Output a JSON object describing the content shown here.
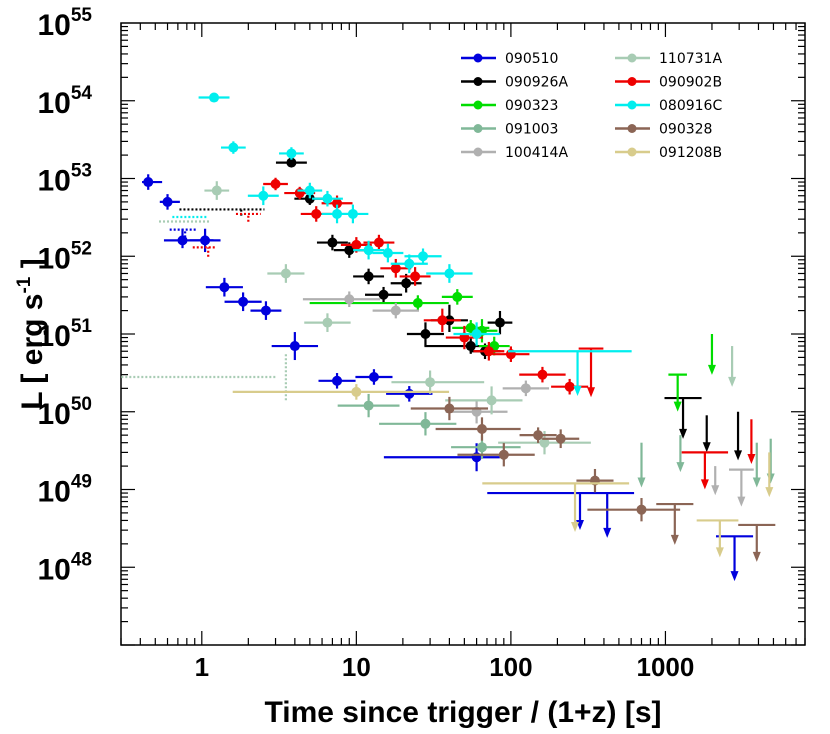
{
  "chart_data": {
    "type": "scatter",
    "title": "",
    "xlabel": "Time since trigger / (1+z) [s]",
    "ylabel": "L [ erg s",
    "ylabel_sup": "-1",
    "ylabel_end": " ]",
    "xscale": "log",
    "yscale": "log",
    "xlim": [
      0.3,
      8000
    ],
    "ylim": [
      1e+47,
      1e+55
    ],
    "x_ticks": [
      1,
      10,
      100,
      1000
    ],
    "x_tick_labels": [
      "1",
      "10",
      "100",
      "1000"
    ],
    "y_ticks": [
      {
        "value": 1e+48,
        "base": "10",
        "exp": "48"
      },
      {
        "value": 1e+49,
        "base": "10",
        "exp": "49"
      },
      {
        "value": 1e+50,
        "base": "10",
        "exp": "50"
      },
      {
        "value": 1e+51,
        "base": "10",
        "exp": "51"
      },
      {
        "value": 1e+52,
        "base": "10",
        "exp": "52"
      },
      {
        "value": 1e+53,
        "base": "10",
        "exp": "53"
      },
      {
        "value": 1e+54,
        "base": "10",
        "exp": "54"
      },
      {
        "value": 1e+55,
        "base": "10",
        "exp": "55"
      }
    ],
    "legend_position": "top-right",
    "series": [
      {
        "name": "090510",
        "color": "#0000dd",
        "points": [
          [
            0.45,
            9e+52,
            0.04,
            0.09,
            0.1,
            0.1
          ],
          [
            0.6,
            5e+52,
            0.05,
            0.08,
            0.1,
            0.1
          ],
          [
            0.75,
            1.6e+52,
            0.12,
            0.2,
            0.1,
            0.15
          ],
          [
            1.05,
            1.6e+52,
            0.1,
            0.1,
            0.15,
            0.15
          ],
          [
            1.4,
            4e+51,
            0.12,
            0.12,
            0.12,
            0.12
          ],
          [
            1.85,
            2.6e+51,
            0.12,
            0.12,
            0.12,
            0.12
          ],
          [
            2.6,
            2e+51,
            0.1,
            0.1,
            0.12,
            0.12
          ],
          [
            4,
            7e+50,
            0.15,
            0.15,
            0.18,
            0.18
          ],
          [
            7.5,
            2.5e+50,
            0.12,
            0.12,
            0.1,
            0.1
          ],
          [
            13,
            2.8e+50,
            0.12,
            0.12,
            0.1,
            0.1
          ],
          [
            22,
            1.7e+50,
            0.15,
            0.15,
            0.1,
            0.1
          ],
          [
            60,
            2.6e+49,
            0.6,
            0.15,
            0.18,
            0.18
          ]
        ],
        "limits": [
          [
            280,
            9e+48,
            0.6,
            0.35,
            0.45
          ],
          [
            420,
            9e+48,
            0,
            0,
            0.55
          ],
          [
            2800,
            2.5e+48,
            0.12,
            0.12,
            0.55
          ]
        ],
        "dotted": [
          [
            0.78,
            2.2e+52,
            0.1,
            0.08,
            0.1,
            0
          ]
        ]
      },
      {
        "name": "090926A",
        "color": "#000000",
        "points": [
          [
            3.8,
            1.6e+53,
            0.1,
            0.1,
            0.05,
            0.05
          ],
          [
            5,
            5.5e+52,
            0.1,
            0.1,
            0.08,
            0.08
          ],
          [
            7,
            1.5e+52,
            0.1,
            0.1,
            0.1,
            0.1
          ],
          [
            9,
            1.2e+52,
            0.1,
            0.1,
            0.1,
            0.1
          ],
          [
            12,
            5.5e+51,
            0.1,
            0.1,
            0.1,
            0.1
          ],
          [
            15,
            3.2e+51,
            0.12,
            0.12,
            0.1,
            0.1
          ],
          [
            21,
            4.5e+51,
            0.1,
            0.1,
            0.12,
            0.12
          ],
          [
            28,
            1e+51,
            0.12,
            0.12,
            0.15,
            0.15
          ],
          [
            40,
            1.5e+51,
            0.12,
            0.12,
            0.15,
            0.2
          ],
          [
            55,
            7e+50,
            0.3,
            0.1,
            0.1,
            0.1
          ],
          [
            68,
            6e+50,
            0.1,
            0.1,
            0.1,
            0.1
          ],
          [
            85,
            1.4e+51,
            0.08,
            0.08,
            0.15,
            0.15
          ]
        ],
        "limits": [
          [
            1300,
            1.5e+50,
            0.12,
            0.12,
            0.5
          ],
          [
            1850,
            9e+49,
            0,
            0,
            0.45
          ],
          [
            2950,
            1e+50,
            0,
            0,
            0.6
          ]
        ],
        "dotted": [
          [
            1.8,
            4e+52,
            0.4,
            0.15,
            0.08,
            0
          ]
        ]
      },
      {
        "name": "090323",
        "color": "#00dd00",
        "points": [
          [
            25,
            2.5e+51,
            0.7,
            0.2,
            0.1,
            0.1
          ],
          [
            45,
            3e+51,
            0.1,
            0.1,
            0.1,
            0.1
          ],
          [
            55,
            1.2e+51,
            0.12,
            0.12,
            0.1,
            0.1
          ],
          [
            65,
            1.1e+51,
            0.1,
            0.1,
            0.15,
            0.15
          ],
          [
            78,
            7e+50,
            0.1,
            0.1,
            0.12,
            0.12
          ]
        ],
        "limits": [
          [
            1200,
            3e+50,
            0.06,
            0.06,
            0.45
          ],
          [
            2000,
            1e+51,
            0,
            0,
            0.5
          ]
        ]
      },
      {
        "name": "091003",
        "color": "#80b898",
        "points": [
          [
            12,
            1.2e+50,
            0.2,
            0.2,
            0.15,
            0.15
          ],
          [
            28,
            7e+49,
            0.3,
            0.2,
            0.15,
            0.15
          ],
          [
            65,
            3.5e+49,
            0.2,
            0.25,
            0.15,
            0.15
          ]
        ],
        "limits": [
          [
            700,
            4e+49,
            0,
            0,
            0.55
          ],
          [
            1250,
            5e+49,
            0,
            0,
            0.45
          ],
          [
            3900,
            4e+49,
            0,
            0,
            0.55
          ],
          [
            4800,
            4.5e+49,
            0,
            0,
            0.55
          ]
        ]
      },
      {
        "name": "100414A",
        "color": "#b0b0b0",
        "points": [
          [
            9,
            2.8e+51,
            0.3,
            0.2,
            0.1,
            0.1
          ],
          [
            18,
            2e+51,
            0.15,
            0.15,
            0.1,
            0.1
          ],
          [
            60,
            1e+50,
            0.2,
            0.2,
            0.15,
            0.15
          ],
          [
            125,
            2e+50,
            0.15,
            0.15,
            0.1,
            0.1
          ]
        ],
        "limits": [
          [
            2100,
            2e+49,
            0,
            0,
            0.35
          ],
          [
            3100,
            1.8e+49,
            0.08,
            0.08,
            0.45
          ]
        ]
      },
      {
        "name": "110731A",
        "color": "#a8ccb4",
        "points": [
          [
            1.25,
            7e+52,
            0.08,
            0.08,
            0.12,
            0.12
          ],
          [
            3.5,
            6e+51,
            0.12,
            0.12,
            0.12,
            0.12
          ],
          [
            6.5,
            1.4e+51,
            0.15,
            0.15,
            0.12,
            0.12
          ],
          [
            30,
            2.4e+50,
            0.25,
            0.35,
            0.15,
            0.15
          ],
          [
            75,
            1.4e+50,
            0.3,
            0.2,
            0.18,
            0.18
          ],
          [
            165,
            4e+49,
            0.3,
            0.3,
            0.15,
            0.15
          ]
        ],
        "limits": [
          [
            2700,
            7e+50,
            0,
            0,
            0.5
          ]
        ],
        "dotted": [
          [
            0.8,
            2.8e+52,
            0.18,
            0.15,
            0,
            0
          ],
          [
            3.5,
            2.8e+50,
            0,
            0,
            0.3,
            0.3
          ],
          [
            1.2,
            2.8e+50,
            0.6,
            0.4,
            0,
            0
          ]
        ]
      },
      {
        "name": "090902B",
        "color": "#ee0000",
        "points": [
          [
            3,
            8.5e+52,
            0.08,
            0.08,
            0.08,
            0.08
          ],
          [
            4.3,
            6.5e+52,
            0.1,
            0.1,
            0.08,
            0.08
          ],
          [
            5.5,
            3.5e+52,
            0.1,
            0.1,
            0.1,
            0.1
          ],
          [
            7.5,
            4.8e+52,
            0.1,
            0.1,
            0.1,
            0.1
          ],
          [
            10,
            1.4e+52,
            0.1,
            0.1,
            0.1,
            0.1
          ],
          [
            14,
            1.5e+52,
            0.1,
            0.1,
            0.1,
            0.1
          ],
          [
            18,
            7e+51,
            0.1,
            0.1,
            0.12,
            0.12
          ],
          [
            24,
            5.5e+51,
            0.1,
            0.1,
            0.12,
            0.12
          ],
          [
            36,
            1.5e+51,
            0.12,
            0.12,
            0.15,
            0.15
          ],
          [
            50,
            9e+50,
            0.12,
            0.12,
            0.15,
            0.15
          ],
          [
            72,
            6e+50,
            0.1,
            0.1,
            0.12,
            0.12
          ],
          [
            100,
            5.5e+50,
            0.12,
            0.12,
            0.1,
            0.1
          ],
          [
            160,
            3e+50,
            0.15,
            0.15,
            0.1,
            0.1
          ],
          [
            240,
            2.1e+50,
            0.12,
            0.12,
            0.1,
            0.1
          ]
        ],
        "limits": [
          [
            330,
            6.5e+50,
            0.08,
            0.08,
            0.6
          ],
          [
            1800,
            3e+49,
            0.15,
            0.15,
            0.45
          ],
          [
            3600,
            8e+49,
            0,
            0,
            0.55
          ]
        ],
        "dotted": [
          [
            2,
            3.5e+52,
            0.08,
            0.08,
            0.1,
            0
          ],
          [
            1.1,
            1.3e+52,
            0.1,
            0.05,
            0.12,
            0
          ]
        ]
      },
      {
        "name": "080916C",
        "color": "#00eeee",
        "points": [
          [
            1.2,
            1.1e+54,
            0.1,
            0.1,
            0.05,
            0.05
          ],
          [
            1.6,
            2.5e+53,
            0.08,
            0.08,
            0.08,
            0.08
          ],
          [
            2.5,
            6e+52,
            0.1,
            0.1,
            0.12,
            0.12
          ],
          [
            3.8,
            2.1e+53,
            0.08,
            0.08,
            0.08,
            0.08
          ],
          [
            5,
            7e+52,
            0.08,
            0.08,
            0.1,
            0.1
          ],
          [
            6.5,
            5.5e+52,
            0.1,
            0.1,
            0.1,
            0.1
          ],
          [
            7.5,
            3.5e+52,
            0.1,
            0.1,
            0.12,
            0.12
          ],
          [
            9.5,
            3.5e+52,
            0.1,
            0.1,
            0.12,
            0.12
          ],
          [
            12,
            1.2e+52,
            0.1,
            0.1,
            0.12,
            0.12
          ],
          [
            16,
            1.1e+52,
            0.1,
            0.1,
            0.12,
            0.12
          ],
          [
            22,
            8e+51,
            0.12,
            0.12,
            0.12,
            0.12
          ],
          [
            27,
            1e+52,
            0.12,
            0.12,
            0.1,
            0.1
          ],
          [
            40,
            6e+51,
            0.15,
            0.15,
            0.12,
            0.12
          ],
          [
            60,
            1e+51,
            0.15,
            0.15,
            0.15,
            0.15
          ]
        ],
        "limits": [
          [
            270,
            6e+50,
            0.45,
            0.35,
            0.55
          ]
        ],
        "dotted": [
          [
            0.85,
            3.2e+52,
            0.12,
            0.1,
            0,
            0
          ]
        ]
      },
      {
        "name": "090328",
        "color": "#8b6555",
        "points": [
          [
            40,
            1.1e+50,
            0.25,
            0.25,
            0.15,
            0.15
          ],
          [
            65,
            6e+49,
            0.3,
            0.25,
            0.15,
            0.15
          ],
          [
            90,
            2.8e+49,
            0.3,
            0.2,
            0.15,
            0.15
          ],
          [
            150,
            5e+49,
            0.12,
            0.12,
            0.1,
            0.1
          ],
          [
            210,
            4.5e+49,
            0.12,
            0.12,
            0.12,
            0.12
          ],
          [
            350,
            1.3e+49,
            0.12,
            0.12,
            0.15,
            0.15
          ],
          [
            700,
            5.5e+48,
            0.35,
            0.25,
            0.15,
            0.15
          ]
        ],
        "limits": [
          [
            1150,
            6.5e+48,
            0.12,
            0.12,
            0.5
          ],
          [
            3900,
            3.5e+48,
            0.12,
            0.12,
            0.45
          ]
        ]
      },
      {
        "name": "091208B",
        "color": "#d8cc8c",
        "points": [
          [
            10,
            1.8e+50,
            0.8,
            0.6,
            0.1,
            0.1
          ]
        ],
        "limits": [
          [
            260,
            1.2e+49,
            0.6,
            0.35,
            0.6
          ],
          [
            2250,
            4e+48,
            0.15,
            0.12,
            0.45
          ],
          [
            4700,
            3e+49,
            0,
            0,
            0.55
          ]
        ]
      }
    ]
  }
}
